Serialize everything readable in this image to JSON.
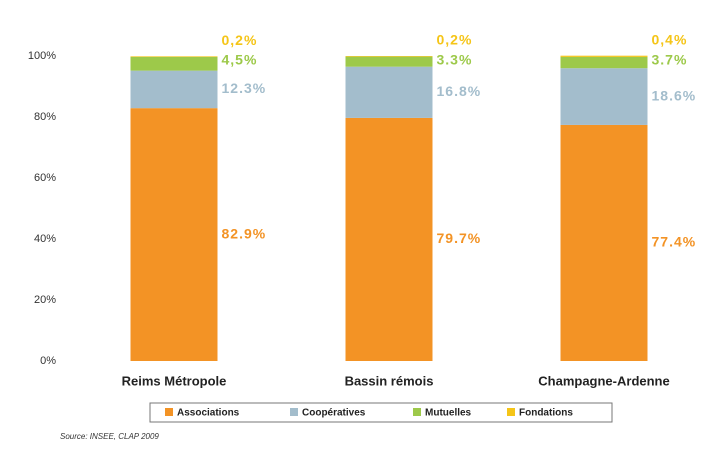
{
  "chart_data": {
    "type": "stacked_bar",
    "categories": [
      "Reims Métropole",
      "Bassin rémois",
      "Champagne-Ardenne"
    ],
    "series": [
      {
        "name": "Associations",
        "color": "#f39325",
        "values": [
          82.9,
          79.7,
          77.4
        ],
        "value_labels": [
          "82.9%",
          "79.7%",
          "77.4%"
        ]
      },
      {
        "name": "Coopératives",
        "color": "#a3bdcc",
        "values": [
          12.3,
          16.8,
          18.6
        ],
        "value_labels": [
          "12.3%",
          "16.8%",
          "18.6%"
        ]
      },
      {
        "name": "Mutuelles",
        "color": "#9dc94a",
        "values": [
          4.5,
          3.3,
          3.7
        ],
        "value_labels": [
          "4,5%",
          "3.3%",
          "3.7%"
        ]
      },
      {
        "name": "Fondations",
        "color": "#f5c518",
        "values": [
          0.2,
          0.2,
          0.4
        ],
        "value_labels": [
          "0,2%",
          "0,2%",
          "0,4%"
        ]
      }
    ],
    "ylim": [
      0,
      100
    ],
    "yticks": [
      {
        "value": 0,
        "label": "0%"
      },
      {
        "value": 20,
        "label": "20%"
      },
      {
        "value": 40,
        "label": "40%"
      },
      {
        "value": 60,
        "label": "60%"
      },
      {
        "value": 80,
        "label": "80%"
      },
      {
        "value": 100,
        "label": "100%"
      }
    ],
    "legend": "bottom",
    "source": "Source: INSEE, CLAP 2009"
  }
}
